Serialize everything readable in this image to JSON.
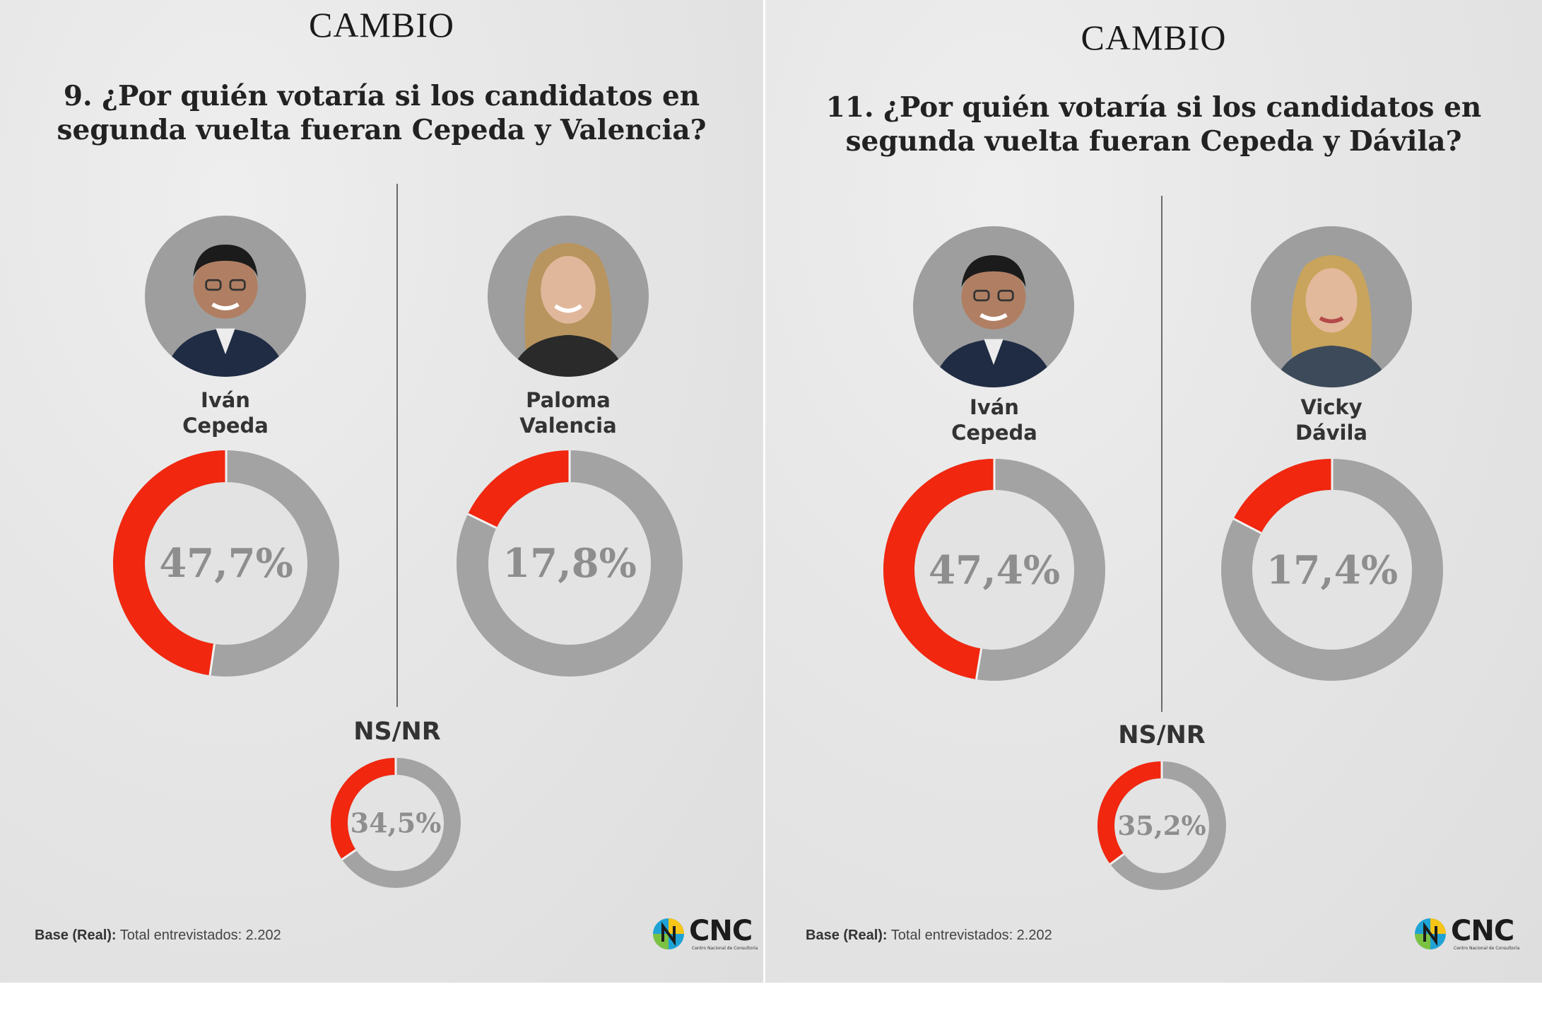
{
  "colors": {
    "accent": "#f1270f",
    "ring": "#a3a3a3",
    "inner": "#e3e3e3",
    "photo_bg": "#9e9e9e"
  },
  "panels": [
    {
      "brand": "CAMBIO",
      "question_line1": "9. ¿Por quién votaría si los candidatos en",
      "question_line2": "segunda vuelta fueran Cepeda y Valencia?",
      "candidates": [
        {
          "name_line1": "Iván",
          "name_line2": "Cepeda",
          "photo": "ivan-cepeda-photo",
          "value": 47.7,
          "label": "47,7%"
        },
        {
          "name_line1": "Paloma",
          "name_line2": "Valencia",
          "photo": "paloma-valencia-photo",
          "value": 17.8,
          "label": "17,8%"
        }
      ],
      "nsnr": {
        "label": "NS/NR",
        "value": 34.5,
        "pct": "34,5%"
      },
      "base_bold": "Base (Real):",
      "base_text": " Total entrevistados: 2.202",
      "logo": {
        "text": "CNC",
        "sub": "Centro Nacional de Consultoría"
      }
    },
    {
      "brand": "CAMBIO",
      "question_line1": "11. ¿Por quién votaría si los candidatos en",
      "question_line2": "segunda vuelta fueran Cepeda y Dávila?",
      "candidates": [
        {
          "name_line1": "Iván",
          "name_line2": "Cepeda",
          "photo": "ivan-cepeda-photo",
          "value": 47.4,
          "label": "47,4%"
        },
        {
          "name_line1": "Vicky",
          "name_line2": "Dávila",
          "photo": "vicky-davila-photo",
          "value": 17.4,
          "label": "17,4%"
        }
      ],
      "nsnr": {
        "label": "NS/NR",
        "value": 35.2,
        "pct": "35,2%"
      },
      "base_bold": "Base (Real):",
      "base_text": " Total entrevistados: 2.202",
      "logo": {
        "text": "CNC",
        "sub": "Centro Nacional de Consultoría"
      }
    }
  ],
  "chart_data": [
    {
      "type": "pie",
      "title": "9. ¿Por quién votaría si los candidatos en segunda vuelta fueran Cepeda y Valencia?",
      "categories": [
        "Iván Cepeda",
        "Paloma Valencia",
        "NS/NR"
      ],
      "values": [
        47.7,
        17.8,
        34.5
      ]
    },
    {
      "type": "pie",
      "title": "11. ¿Por quién votaría si los candidatos en segunda vuelta fueran Cepeda y Dávila?",
      "categories": [
        "Iván Cepeda",
        "Vicky Dávila",
        "NS/NR"
      ],
      "values": [
        47.4,
        17.4,
        35.2
      ]
    }
  ]
}
